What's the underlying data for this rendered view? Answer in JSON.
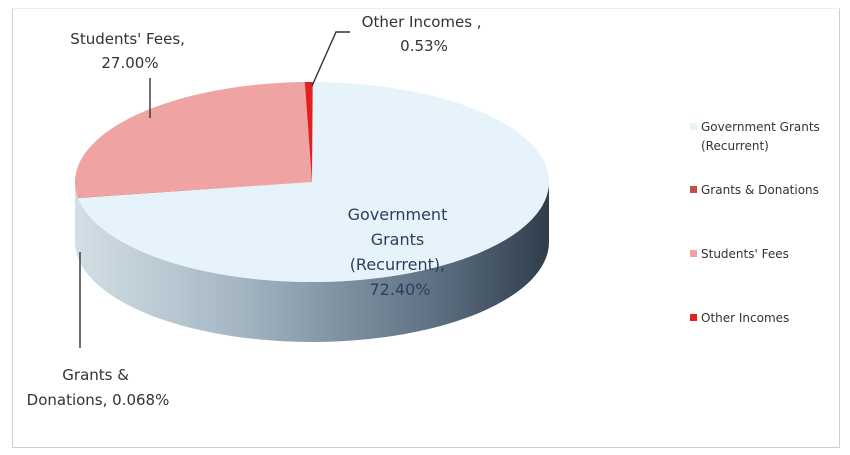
{
  "chart_data": {
    "type": "pie",
    "title": "",
    "slices": [
      {
        "label_lines": [
          "Government",
          "Grants",
          "(Recurrent),",
          "72.40%"
        ],
        "legend_lines": [
          "Government Grants",
          "(Recurrent)"
        ],
        "value": 72.4,
        "color": "#e6f3fa"
      },
      {
        "label_lines": [
          "Grants &",
          "Donations, 0.068%"
        ],
        "legend_lines": [
          "Grants & Donations"
        ],
        "value": 0.068,
        "color": "#c0504d"
      },
      {
        "label_lines": [
          "Students' Fees,",
          "27.00%"
        ],
        "legend_lines": [
          "Students' Fees"
        ],
        "value": 27.0,
        "color": "#f0a3a3"
      },
      {
        "label_lines": [
          "Other Incomes ,",
          "0.53%"
        ],
        "legend_lines": [
          "Other Incomes"
        ],
        "value": 0.53,
        "color": "#e32020"
      }
    ],
    "legend_position": "right"
  }
}
